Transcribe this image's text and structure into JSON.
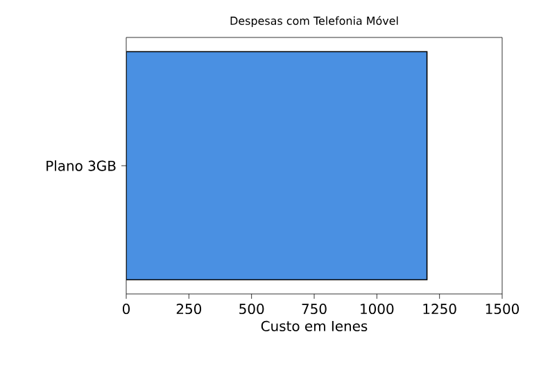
{
  "chart_data": {
    "type": "bar",
    "orientation": "horizontal",
    "title": "Despesas com Telefonia Móvel",
    "xlabel": "Custo em Ienes",
    "categories": [
      "Plano 3GB"
    ],
    "values": [
      1200
    ],
    "color": "#4a90e2",
    "xlim": [
      0,
      1500
    ],
    "xticks": [
      0,
      250,
      500,
      750,
      1000,
      1250,
      1500
    ]
  }
}
